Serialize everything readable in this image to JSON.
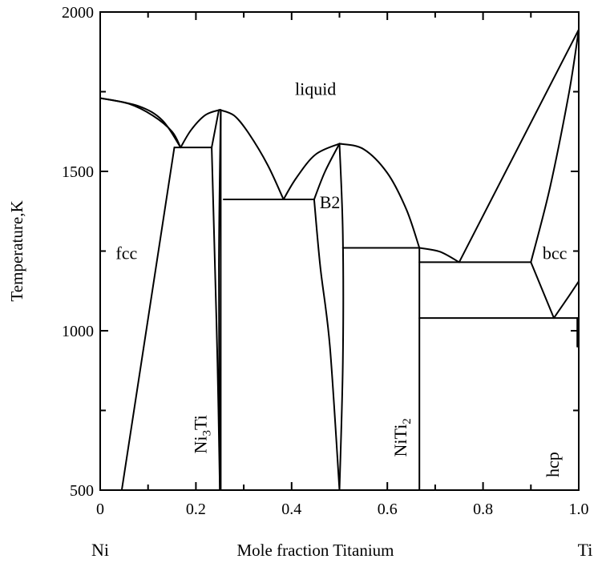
{
  "chart_data": {
    "type": "phase-diagram",
    "title": "",
    "xlabel": "Mole fraction Titanium",
    "ylabel": "Temperature,K",
    "x_left_label": "Ni",
    "x_right_label": "Ti",
    "xlim": [
      0,
      1
    ],
    "ylim": [
      500,
      2000
    ],
    "x_ticks": [
      0,
      0.2,
      0.4,
      0.6,
      0.8,
      1.0
    ],
    "x_tick_labels": [
      "0",
      "0.2",
      "0.4",
      "0.6",
      "0.8",
      "1.0"
    ],
    "y_ticks": [
      500,
      1000,
      1500,
      2000
    ],
    "y_tick_labels": [
      "500",
      "1000",
      "1500",
      "2000"
    ],
    "regions": [
      {
        "label": "liquid",
        "x": 0.45,
        "y": 1740
      },
      {
        "label": "fcc",
        "x": 0.055,
        "y": 1225
      },
      {
        "label": "B2",
        "x": 0.48,
        "y": 1385
      },
      {
        "label": "bcc",
        "x": 0.95,
        "y": 1225
      }
    ],
    "vertical_labels": [
      {
        "parts": [
          "Ni",
          "3",
          "Ti"
        ],
        "x": 0.222,
        "y": 675
      },
      {
        "parts": [
          "NiTi",
          "2",
          ""
        ],
        "x": 0.64,
        "y": 665
      },
      {
        "parts": [
          "hcp",
          "",
          ""
        ],
        "x": 0.958,
        "y": 580
      }
    ],
    "boundaries": [
      {
        "name": "liquidus-fcc",
        "kind": "curve",
        "points": [
          [
            0,
            1730
          ],
          [
            0.06,
            1712
          ],
          [
            0.11,
            1675
          ],
          [
            0.15,
            1625
          ],
          [
            0.168,
            1575
          ]
        ]
      },
      {
        "name": "solidus-fcc",
        "kind": "curve",
        "points": [
          [
            0,
            1730
          ],
          [
            0.08,
            1705
          ],
          [
            0.13,
            1660
          ],
          [
            0.168,
            1575
          ]
        ]
      },
      {
        "name": "liquidus-ni3ti-left",
        "kind": "curve",
        "points": [
          [
            0.168,
            1575
          ],
          [
            0.19,
            1630
          ],
          [
            0.22,
            1677
          ],
          [
            0.25,
            1693
          ]
        ]
      },
      {
        "name": "liquidus-ni3ti-right",
        "kind": "curve",
        "points": [
          [
            0.25,
            1693
          ],
          [
            0.28,
            1675
          ],
          [
            0.31,
            1620
          ],
          [
            0.35,
            1520
          ],
          [
            0.383,
            1412
          ]
        ]
      },
      {
        "name": "liquidus-b2-left",
        "kind": "curve",
        "points": [
          [
            0.383,
            1412
          ],
          [
            0.41,
            1480
          ],
          [
            0.45,
            1553
          ],
          [
            0.5,
            1587
          ]
        ]
      },
      {
        "name": "liquidus-b2-right",
        "kind": "curve",
        "points": [
          [
            0.5,
            1587
          ],
          [
            0.55,
            1570
          ],
          [
            0.6,
            1495
          ],
          [
            0.64,
            1380
          ],
          [
            0.667,
            1260
          ]
        ]
      },
      {
        "name": "liquidus-near-nitі2",
        "kind": "curve",
        "points": [
          [
            0.667,
            1260
          ],
          [
            0.71,
            1248
          ],
          [
            0.75,
            1215
          ]
        ]
      },
      {
        "name": "liquidus-bcc",
        "kind": "line",
        "points": [
          [
            0.75,
            1215
          ],
          [
            1.0,
            1945
          ]
        ]
      },
      {
        "name": "solidus-bcc",
        "kind": "curve",
        "points": [
          [
            0.9,
            1215
          ],
          [
            0.94,
            1450
          ],
          [
            0.98,
            1750
          ],
          [
            1.0,
            1945
          ]
        ]
      },
      {
        "name": "fcc-solvus",
        "kind": "line",
        "points": [
          [
            0.045,
            500
          ],
          [
            0.155,
            1575
          ]
        ]
      },
      {
        "name": "eutectic-fcc-ni3ti",
        "kind": "line",
        "points": [
          [
            0.155,
            1575
          ],
          [
            0.233,
            1575
          ]
        ]
      },
      {
        "name": "ni3ti-left",
        "kind": "curve",
        "points": [
          [
            0.233,
            1575
          ],
          [
            0.238,
            1300
          ],
          [
            0.245,
            900
          ],
          [
            0.25,
            500
          ]
        ]
      },
      {
        "name": "ni3ti-peak-left",
        "kind": "line",
        "points": [
          [
            0.248,
            1693
          ],
          [
            0.233,
            1575
          ]
        ]
      },
      {
        "name": "ni3ti-right",
        "kind": "line",
        "points": [
          [
            0.252,
            1693
          ],
          [
            0.252,
            500
          ]
        ]
      },
      {
        "name": "ni3ti-right-thin",
        "kind": "curve",
        "points": [
          [
            0.252,
            1693
          ],
          [
            0.248,
            1200
          ],
          [
            0.25,
            500
          ]
        ]
      },
      {
        "name": "eutectic-ni3ti-b2",
        "kind": "line",
        "points": [
          [
            0.258,
            1412
          ],
          [
            0.447,
            1412
          ]
        ]
      },
      {
        "name": "b2-left-solvus",
        "kind": "curve",
        "points": [
          [
            0.447,
            1412
          ],
          [
            0.46,
            1200
          ],
          [
            0.48,
            950
          ],
          [
            0.5,
            500
          ]
        ]
      },
      {
        "name": "b2-peak-left",
        "kind": "curve",
        "points": [
          [
            0.447,
            1412
          ],
          [
            0.47,
            1500
          ],
          [
            0.5,
            1587
          ]
        ]
      },
      {
        "name": "b2-right-solvus",
        "kind": "curve",
        "points": [
          [
            0.5,
            1587
          ],
          [
            0.507,
            1300
          ],
          [
            0.507,
            900
          ],
          [
            0.5,
            500
          ]
        ]
      },
      {
        "name": "eutectic-b2-nitі2",
        "kind": "line",
        "points": [
          [
            0.507,
            1260
          ],
          [
            0.667,
            1260
          ]
        ]
      },
      {
        "name": "nitі2-line",
        "kind": "line",
        "points": [
          [
            0.667,
            1260
          ],
          [
            0.667,
            500
          ]
        ]
      },
      {
        "name": "eutectic-nitі2-bcc",
        "kind": "line",
        "points": [
          [
            0.667,
            1215
          ],
          [
            0.9,
            1215
          ]
        ]
      },
      {
        "name": "bcc-lower-left",
        "kind": "line",
        "points": [
          [
            0.9,
            1215
          ],
          [
            0.948,
            1040
          ]
        ]
      },
      {
        "name": "eutectoid",
        "kind": "line",
        "points": [
          [
            0.667,
            1040
          ],
          [
            1.0,
            1040
          ]
        ]
      },
      {
        "name": "bcc-hcp-right",
        "kind": "curve",
        "points": [
          [
            0.948,
            1040
          ],
          [
            0.98,
            1110
          ],
          [
            1.0,
            1155
          ]
        ]
      },
      {
        "name": "hcp-line",
        "kind": "line",
        "points": [
          [
            0.997,
            1040
          ],
          [
            0.997,
            950
          ]
        ]
      }
    ]
  }
}
